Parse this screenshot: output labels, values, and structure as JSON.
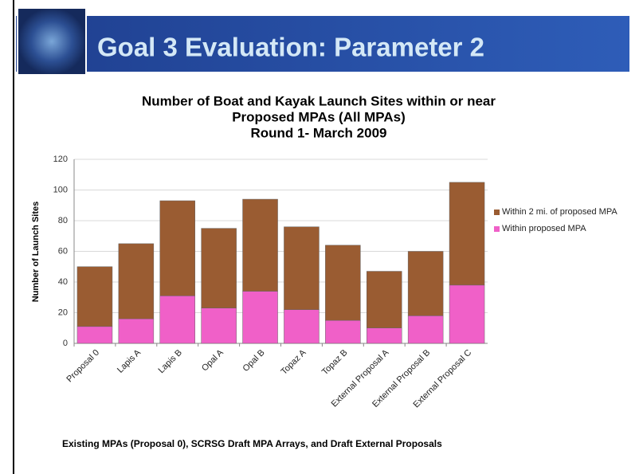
{
  "header": {
    "title": "Goal 3 Evaluation: Parameter 2"
  },
  "chart_data": {
    "type": "stacked_bar",
    "title": [
      "Number of Boat and Kayak Launch Sites within or near",
      "Proposed MPAs (All MPAs)",
      "Round 1- March 2009"
    ],
    "y_label": "Number of Launch Sites",
    "x_label": "Existing MPAs (Proposal 0), SCRSG Draft MPA Arrays, and Draft External Proposals",
    "categories": [
      "Proposal 0",
      "Lapis A",
      "Lapis B",
      "Opal A",
      "Opal B",
      "Topaz A",
      "Topaz B",
      "External Proposal A",
      "External Proposal B",
      "External Proposal C"
    ],
    "series": [
      {
        "name": "Within proposed MPA",
        "color": "#f060c8",
        "values": [
          11,
          16,
          31,
          23,
          34,
          22,
          15,
          10,
          18,
          38
        ]
      },
      {
        "name": "Within 2 mi. of proposed MPA",
        "color": "#9a5c32",
        "values": [
          39,
          49,
          62,
          52,
          60,
          54,
          49,
          37,
          42,
          67
        ]
      }
    ],
    "ylim": [
      0,
      120
    ],
    "yticks": [
      0,
      20,
      40,
      60,
      80,
      100,
      120
    ],
    "grid": true,
    "legend": "right"
  }
}
